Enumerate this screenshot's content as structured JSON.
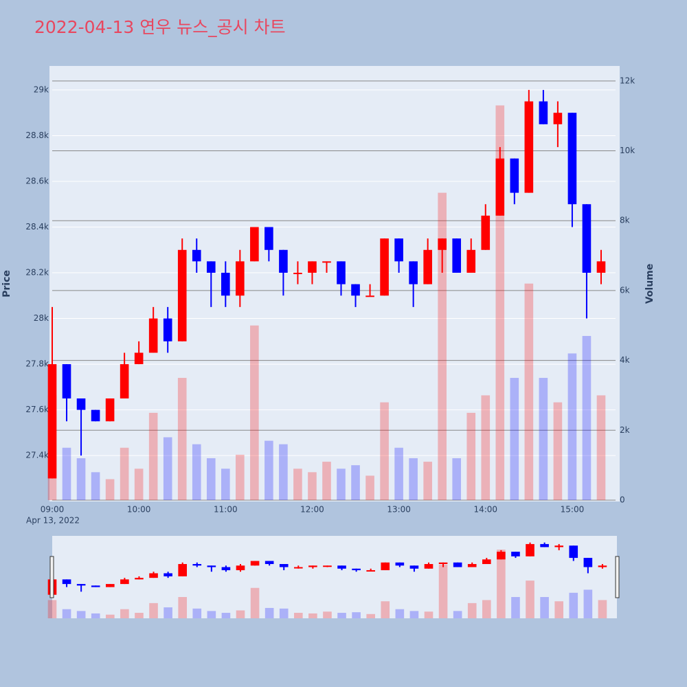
{
  "chart_data": {
    "type": "candlestick",
    "title": "2022-04-13 연우 뉴스_공시 차트",
    "y_title": "Price",
    "y2_title": "Volume",
    "date_label": "Apr 13, 2022",
    "increasing_color": "#ff0000",
    "decreasing_color": "#0000ff",
    "x": [
      "09:00",
      "09:10",
      "09:20",
      "09:30",
      "09:40",
      "09:50",
      "10:00",
      "10:10",
      "10:20",
      "10:30",
      "10:40",
      "10:50",
      "11:00",
      "11:10",
      "11:20",
      "11:30",
      "11:40",
      "11:50",
      "12:00",
      "12:10",
      "12:20",
      "12:30",
      "12:40",
      "12:50",
      "13:00",
      "13:10",
      "13:20",
      "13:30",
      "13:40",
      "13:50",
      "14:00",
      "14:10",
      "14:20",
      "14:30",
      "14:40",
      "14:50",
      "15:00",
      "15:10",
      "15:20"
    ],
    "open": [
      27300,
      27800,
      27650,
      27600,
      27550,
      27650,
      27800,
      27850,
      28000,
      27900,
      28300,
      28250,
      28200,
      28100,
      28250,
      28400,
      28300,
      28200,
      28200,
      28250,
      28250,
      28150,
      28100,
      28100,
      28350,
      28250,
      28150,
      28300,
      28350,
      28200,
      28300,
      28450,
      28700,
      28550,
      28950,
      28850,
      28900,
      28500,
      28200
    ],
    "high": [
      28050,
      27800,
      27650,
      27600,
      27650,
      27850,
      27900,
      28050,
      28050,
      28350,
      28350,
      28250,
      28250,
      28300,
      28400,
      28400,
      28300,
      28250,
      28250,
      28250,
      28250,
      28150,
      28150,
      28350,
      28350,
      28250,
      28350,
      28350,
      28350,
      28350,
      28500,
      28750,
      28700,
      29000,
      29000,
      28950,
      28900,
      28500,
      28300
    ],
    "low": [
      27300,
      27550,
      27400,
      27550,
      27550,
      27650,
      27800,
      27850,
      27850,
      27900,
      28200,
      28050,
      28050,
      28050,
      28250,
      28250,
      28100,
      28150,
      28150,
      28200,
      28100,
      28050,
      28100,
      28100,
      28200,
      28050,
      28150,
      28200,
      28200,
      28200,
      28300,
      28450,
      28500,
      28550,
      28850,
      28750,
      28400,
      28000,
      28150
    ],
    "close": [
      27800,
      27650,
      27600,
      27550,
      27650,
      27800,
      27850,
      28000,
      27900,
      28300,
      28250,
      28200,
      28100,
      28250,
      28400,
      28300,
      28200,
      28200,
      28250,
      28250,
      28150,
      28100,
      28100,
      28350,
      28250,
      28150,
      28300,
      28350,
      28200,
      28300,
      28450,
      28700,
      28550,
      28950,
      28850,
      28900,
      28500,
      28200,
      28250
    ],
    "volume": [
      3000,
      1500,
      1200,
      800,
      600,
      1500,
      900,
      2500,
      1800,
      3500,
      1600,
      1200,
      900,
      1300,
      5000,
      1700,
      1600,
      900,
      800,
      1100,
      900,
      1000,
      700,
      2800,
      1500,
      1200,
      1100,
      8800,
      1200,
      2500,
      3000,
      11300,
      3500,
      6200,
      3500,
      2800,
      4200,
      4700,
      3000
    ],
    "xlim": [
      "09:00",
      "15:30"
    ],
    "xticks": [
      "09:00",
      "10:00",
      "11:00",
      "12:00",
      "13:00",
      "14:00",
      "15:00"
    ],
    "ylim": [
      27205,
      29105
    ],
    "yticks": [
      {
        "value": 27400,
        "label": "27.4k"
      },
      {
        "value": 27600,
        "label": "27.6k"
      },
      {
        "value": 27800,
        "label": "27.8k"
      },
      {
        "value": 28000,
        "label": "28k"
      },
      {
        "value": 28200,
        "label": "28.2k"
      },
      {
        "value": 28400,
        "label": "28.4k"
      },
      {
        "value": 28600,
        "label": "28.6k"
      },
      {
        "value": 28800,
        "label": "28.8k"
      },
      {
        "value": 29000,
        "label": "29k"
      }
    ],
    "y2lim": [
      0,
      12430
    ],
    "y2ticks": [
      0,
      {
        "value": 2000,
        "label": "2k"
      },
      {
        "value": 4000,
        "label": "4k"
      },
      {
        "value": 6000,
        "label": "6k"
      },
      {
        "value": 8000,
        "label": "8k"
      },
      {
        "value": 10000,
        "label": "10k"
      },
      {
        "value": 12000,
        "label": "12k"
      }
    ]
  }
}
